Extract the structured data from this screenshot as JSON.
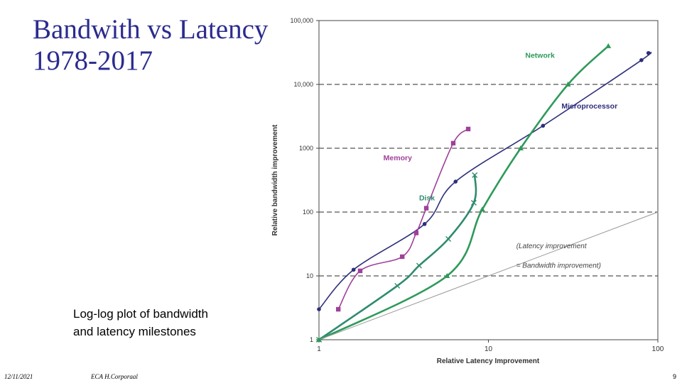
{
  "slide": {
    "title_line1": "Bandwith vs Latency",
    "title_line2": "1978-2017",
    "caption_line1": "Log-log plot of bandwidth",
    "caption_line2": "and latency milestones",
    "footer_date": "12/11/2021",
    "footer_author": "ECA H.Corporaal",
    "page_number": "9",
    "title_color": "#2b2b8f"
  },
  "chart_data": {
    "type": "line",
    "xlabel": "Relative Latency Improvement",
    "ylabel": "Relative bandwidth improvement",
    "x_scale": "log",
    "y_scale": "log",
    "xlim": [
      1,
      100
    ],
    "ylim": [
      1,
      100000
    ],
    "x_ticks": [
      1,
      10,
      100
    ],
    "x_tick_labels": [
      "1",
      "10",
      "100"
    ],
    "y_ticks": [
      1,
      10,
      100,
      1000,
      10000,
      100000
    ],
    "y_tick_labels": [
      "1",
      "10",
      "100",
      "1000",
      "10,000",
      "100,000"
    ],
    "grid": "dashed horizontal lines at 10, 100, 1000, 10,000",
    "series": [
      {
        "name": "Microprocessor",
        "color": "#2e2e7a",
        "marker": "circle",
        "points": [
          [
            1,
            3
          ],
          [
            1.6,
            12.5
          ],
          [
            4.2,
            65
          ],
          [
            6.4,
            300
          ],
          [
            21,
            2250
          ],
          [
            80,
            24000
          ],
          [
            88,
            31000
          ]
        ]
      },
      {
        "name": "Memory",
        "color": "#a0409a",
        "marker": "square",
        "points": [
          [
            1.3,
            3
          ],
          [
            1.75,
            12
          ],
          [
            3.1,
            20
          ],
          [
            3.75,
            47
          ],
          [
            4.3,
            115
          ],
          [
            6.2,
            1200
          ],
          [
            7.6,
            2000
          ]
        ]
      },
      {
        "name": "Disk",
        "color": "#2e8b6f",
        "marker": "x",
        "points": [
          [
            1,
            1
          ],
          [
            2.9,
            7
          ],
          [
            3.9,
            14.5
          ],
          [
            5.8,
            38
          ],
          [
            8.2,
            140
          ],
          [
            8.3,
            380
          ]
        ]
      },
      {
        "name": "Network",
        "color": "#2e9a5a",
        "marker": "triangle",
        "points": [
          [
            1,
            1
          ],
          [
            5.7,
            10
          ],
          [
            9.2,
            110
          ],
          [
            15.5,
            1000
          ],
          [
            29.5,
            10000
          ],
          [
            51,
            40000
          ]
        ]
      },
      {
        "name": "(Latency improvement = Bandwidth improvement)",
        "color": "#999999",
        "marker": "none",
        "points": [
          [
            1,
            1
          ],
          [
            100,
            100
          ]
        ]
      }
    ],
    "annotations": [
      {
        "text": "Network",
        "x": 16.5,
        "y": 26000
      },
      {
        "text": "Microprocessor",
        "x": 27,
        "y": 4200
      },
      {
        "text": "Memory",
        "x": 2.4,
        "y": 650
      },
      {
        "text": "Disk",
        "x": 3.9,
        "y": 152
      },
      {
        "text": "(Latency improvement",
        "x": 14.6,
        "y": 27
      },
      {
        "text": "= Bandwidth improvement)",
        "x": 14.6,
        "y": 13.5
      }
    ]
  }
}
